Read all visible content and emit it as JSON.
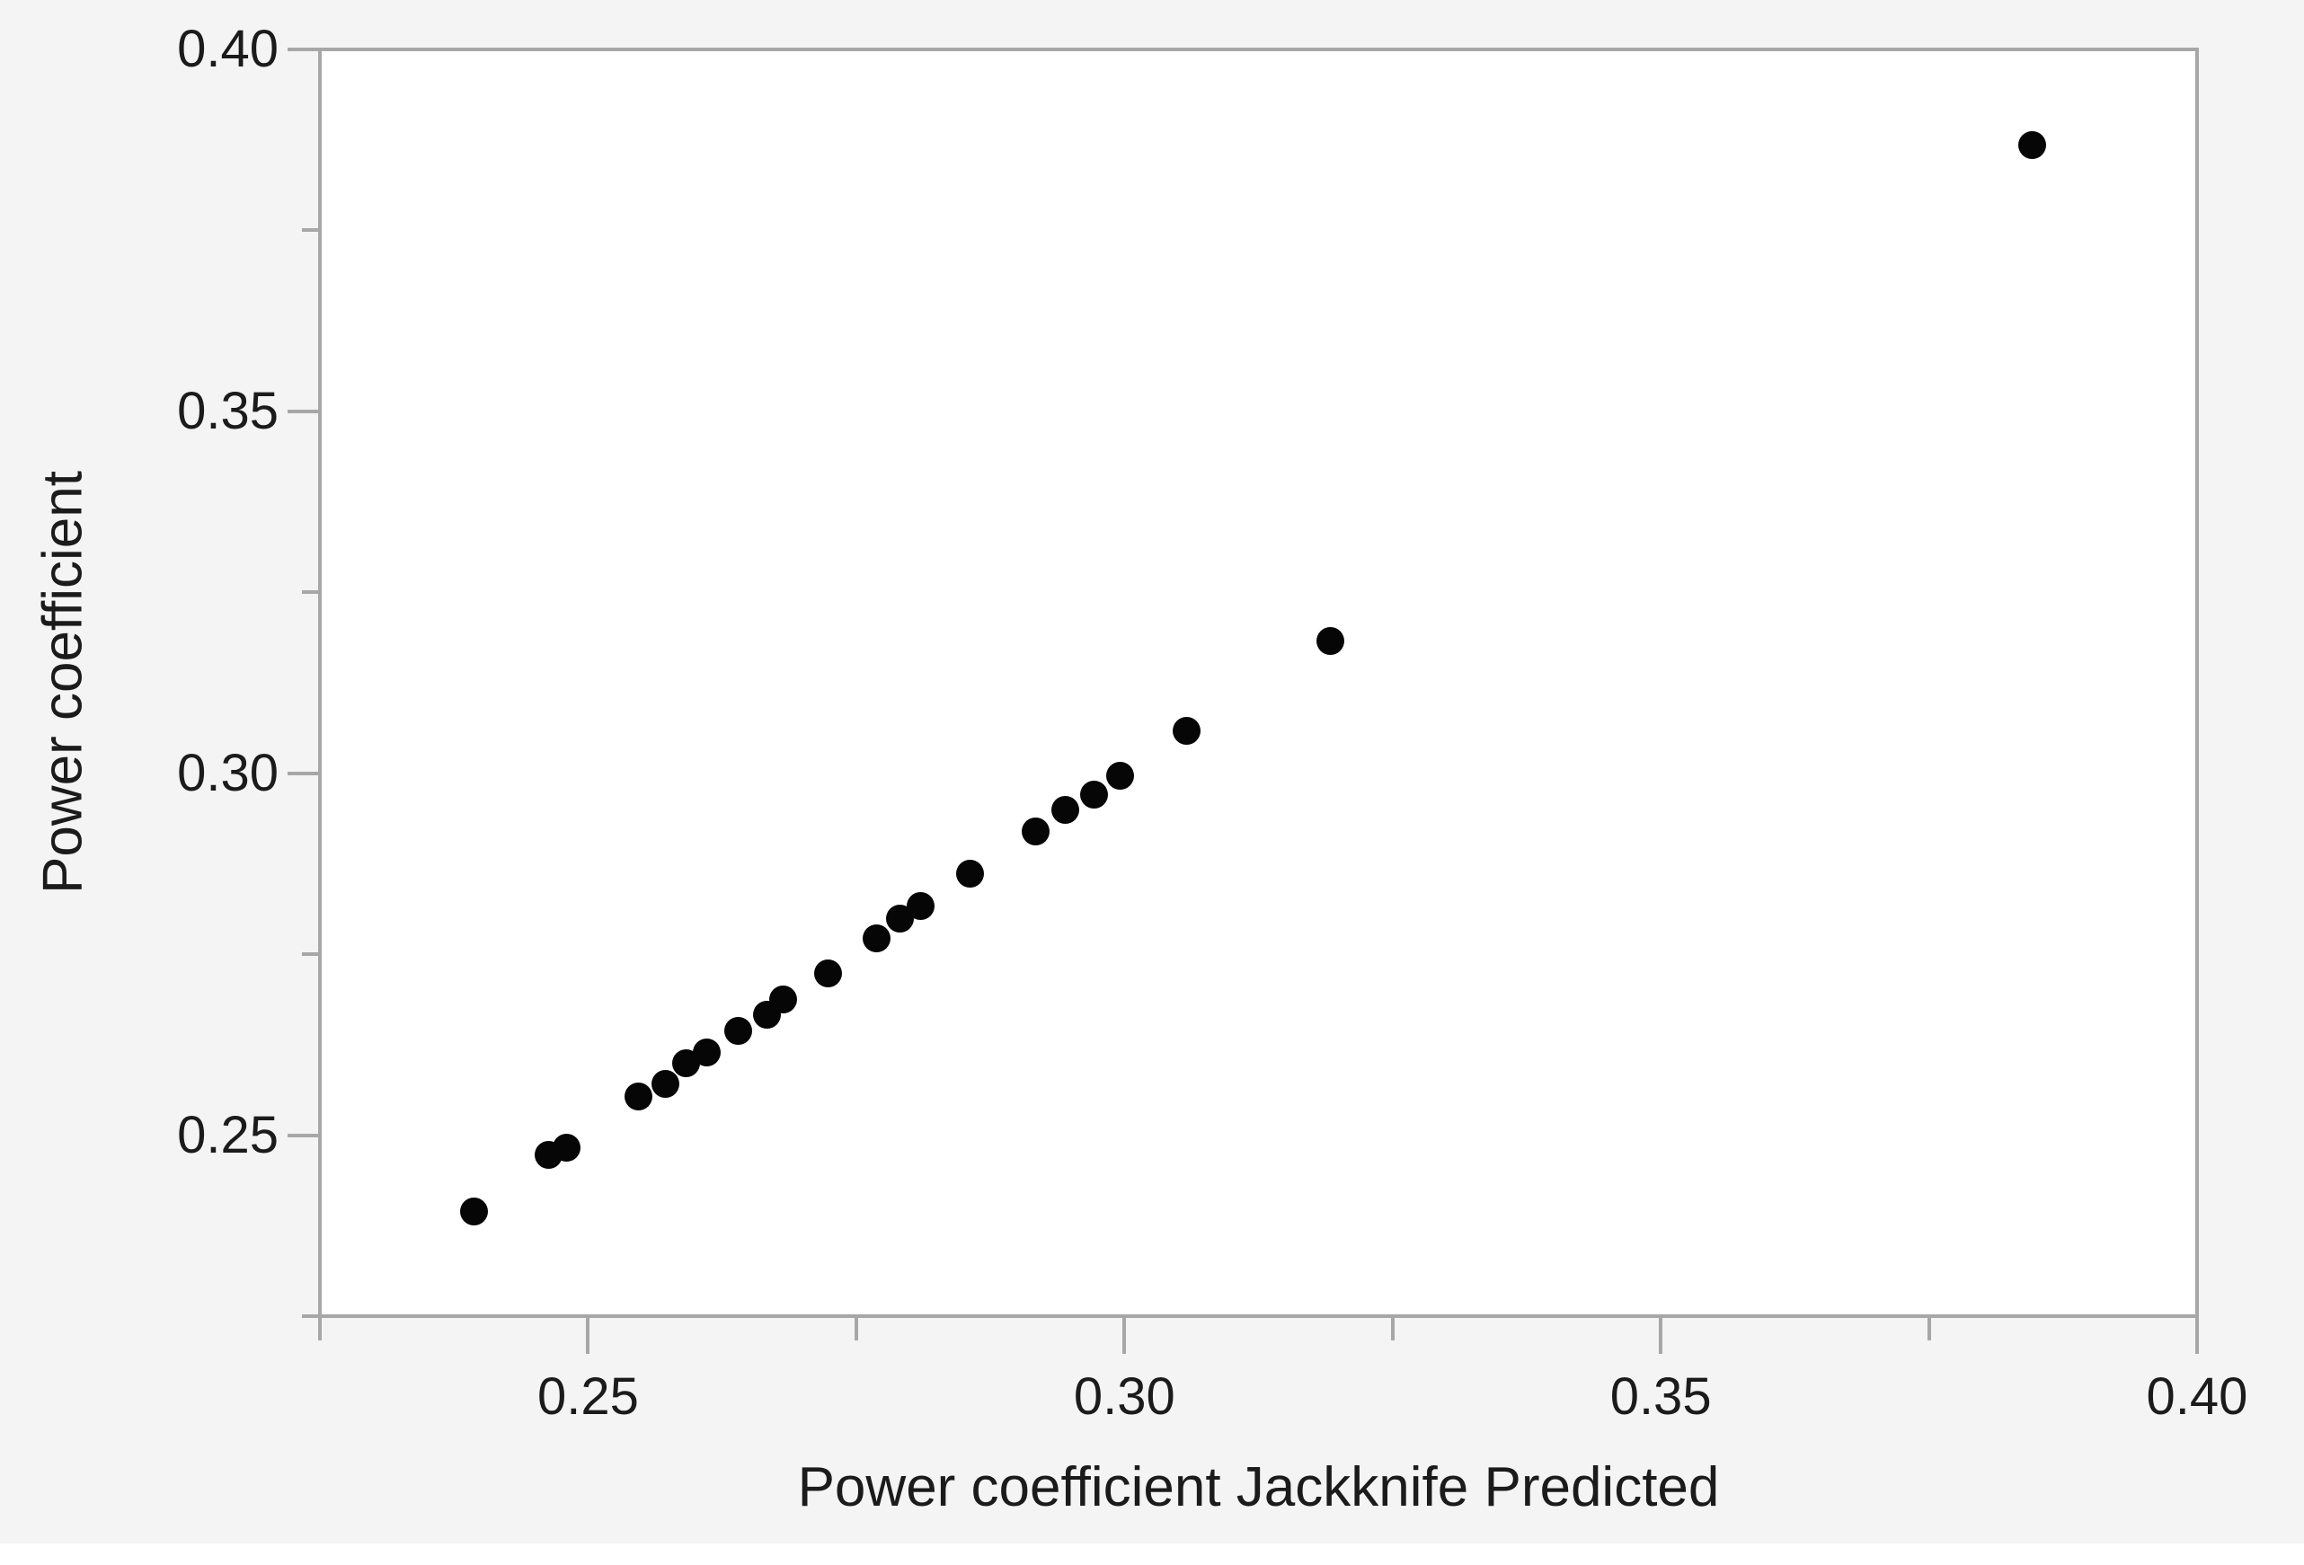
{
  "figure": {
    "background_color": "#f4f4f5",
    "plot_background_color": "#ffffff",
    "frame_color": "#a7a7a7",
    "tick_color": "#a7a7a7",
    "text_color": "#1b1b1b",
    "marker_color": "#060606"
  },
  "chart_data": {
    "type": "scatter",
    "title": "",
    "xlabel": "Power coefficient Jackknife Predicted",
    "ylabel": "Power coefficient",
    "xlim": [
      0.225,
      0.4
    ],
    "ylim": [
      0.225,
      0.4
    ],
    "grid": false,
    "legend": "none",
    "x_major_ticks": [
      {
        "value": 0.25,
        "label": "0.25"
      },
      {
        "value": 0.3,
        "label": "0.30"
      },
      {
        "value": 0.35,
        "label": "0.35"
      },
      {
        "value": 0.4,
        "label": "0.40"
      }
    ],
    "y_major_ticks": [
      {
        "value": 0.25,
        "label": "0.25"
      },
      {
        "value": 0.3,
        "label": "0.30"
      },
      {
        "value": 0.35,
        "label": "0.35"
      },
      {
        "value": 0.4,
        "label": "0.40"
      }
    ],
    "x_minor_ticks": [
      0.225,
      0.275,
      0.325,
      0.375
    ],
    "y_minor_ticks": [
      0.225,
      0.275,
      0.325,
      0.375
    ],
    "points": [
      [
        0.2394,
        0.2395
      ],
      [
        0.2463,
        0.2473
      ],
      [
        0.248,
        0.2483
      ],
      [
        0.2547,
        0.2554
      ],
      [
        0.2572,
        0.2571
      ],
      [
        0.2591,
        0.26
      ],
      [
        0.2611,
        0.2614
      ],
      [
        0.264,
        0.2644
      ],
      [
        0.2667,
        0.2667
      ],
      [
        0.2682,
        0.2687
      ],
      [
        0.2724,
        0.2724
      ],
      [
        0.2769,
        0.2772
      ],
      [
        0.2791,
        0.2799
      ],
      [
        0.281,
        0.2817
      ],
      [
        0.2856,
        0.2861
      ],
      [
        0.2917,
        0.2919
      ],
      [
        0.2945,
        0.2949
      ],
      [
        0.2972,
        0.2971
      ],
      [
        0.2996,
        0.2997
      ],
      [
        0.3058,
        0.3059
      ],
      [
        0.3192,
        0.3183
      ],
      [
        0.3846,
        0.3868
      ]
    ]
  }
}
